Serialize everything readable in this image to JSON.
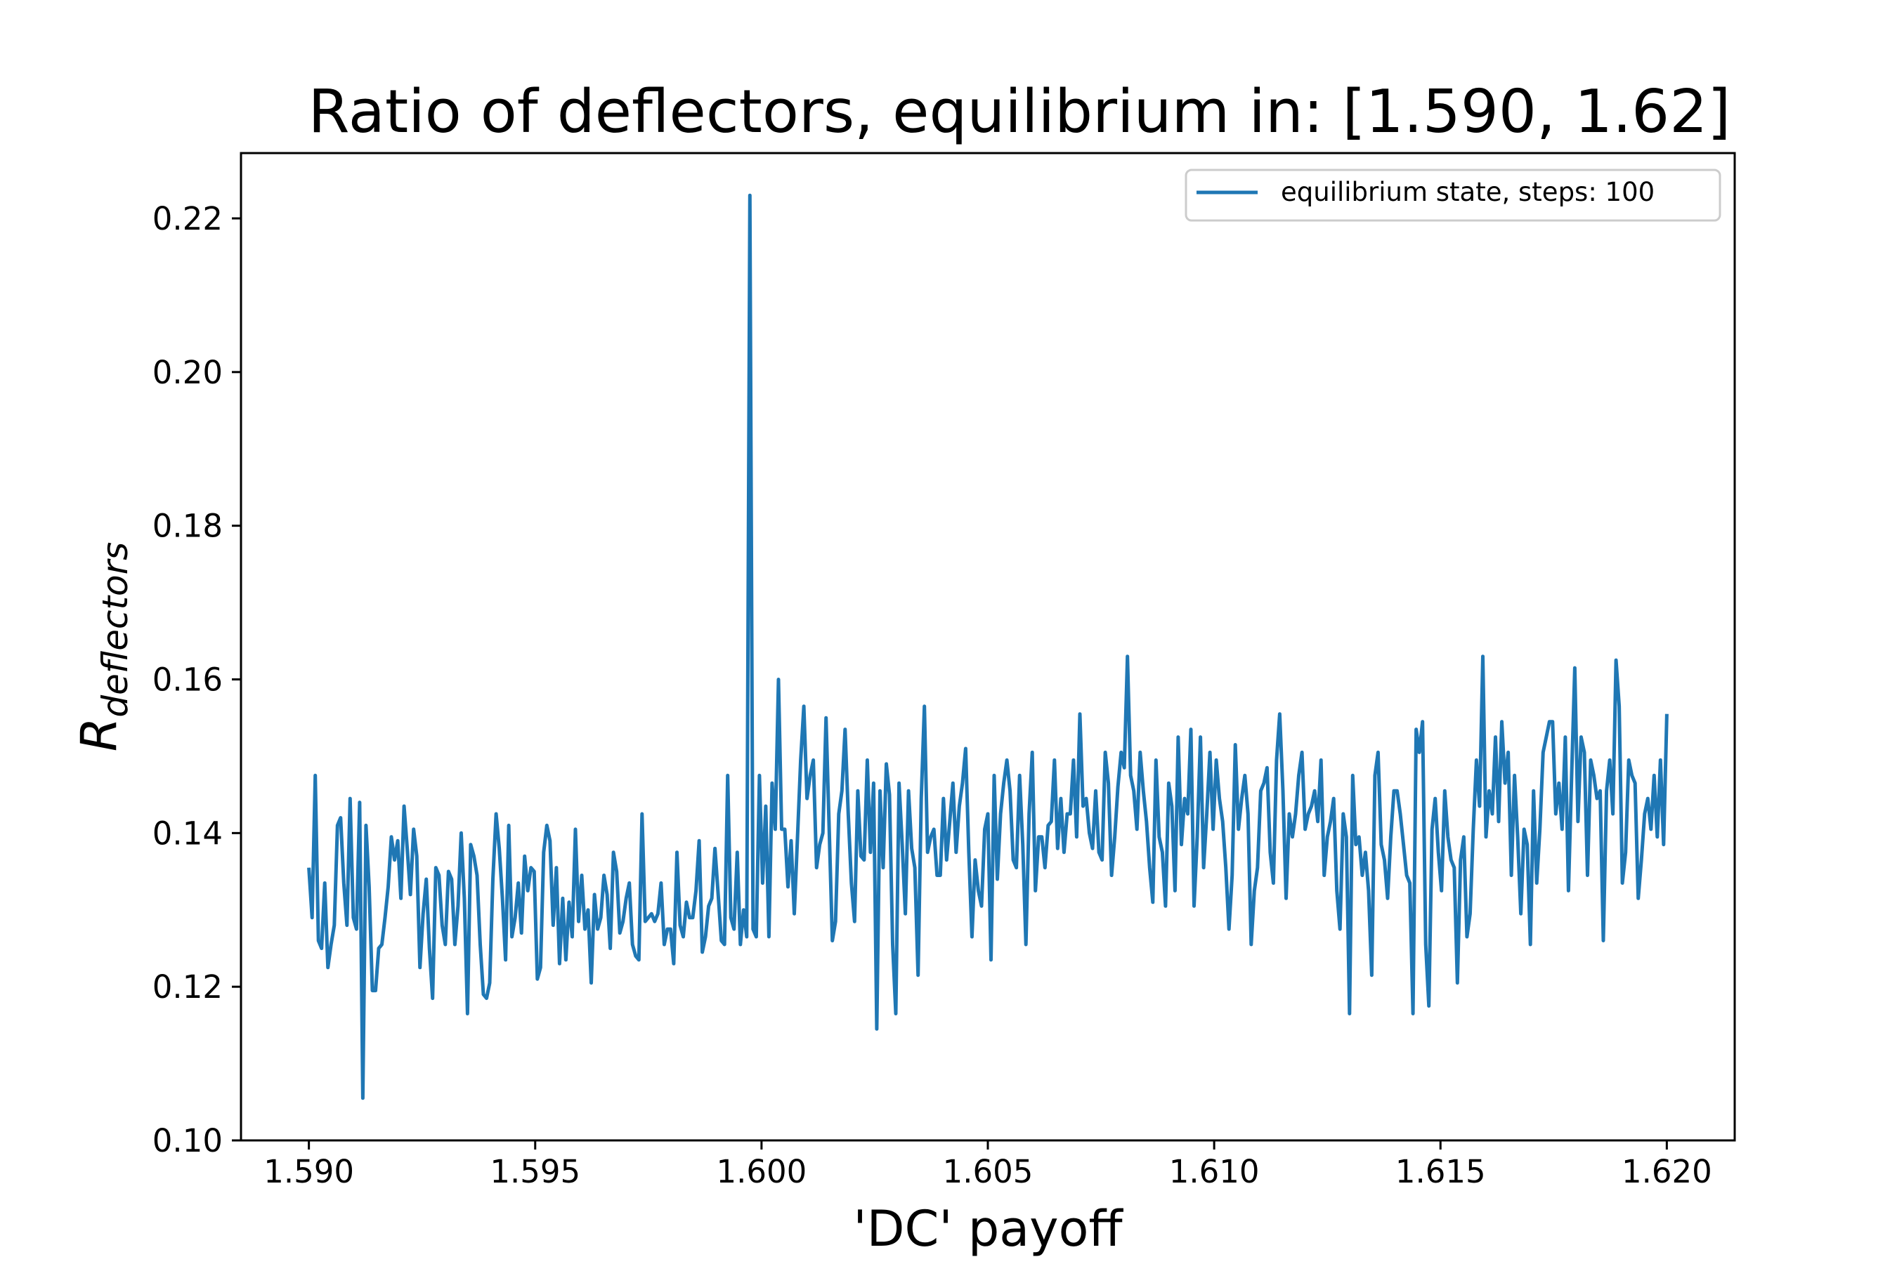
{
  "chart_data": {
    "type": "line",
    "title": "Ratio of deflectors, equilibrium in: [1.590, 1.62]",
    "xlabel": "'DC' payoff",
    "ylabel_main": "R",
    "ylabel_sub": "deflectors",
    "xlim": [
      1.5885,
      1.6215
    ],
    "ylim": [
      0.1,
      0.2285
    ],
    "x_ticks": [
      1.59,
      1.595,
      1.6,
      1.605,
      1.61,
      1.615,
      1.62
    ],
    "x_tick_labels": [
      "1.590",
      "1.595",
      "1.600",
      "1.605",
      "1.610",
      "1.615",
      "1.620"
    ],
    "y_ticks": [
      0.1,
      0.12,
      0.14,
      0.16,
      0.18,
      0.2,
      0.22
    ],
    "y_tick_labels": [
      "0.10",
      "0.12",
      "0.14",
      "0.16",
      "0.18",
      "0.20",
      "0.22"
    ],
    "grid": false,
    "legend_position": "top-right",
    "series": [
      {
        "name": "equilibrium state, steps: 100",
        "color": "#1f77b4",
        "x_start": 1.59,
        "x_end": 1.62,
        "values": [
          0.1355,
          0.129,
          0.1475,
          0.126,
          0.125,
          0.1335,
          0.1225,
          0.1255,
          0.128,
          0.141,
          0.142,
          0.1335,
          0.128,
          0.1445,
          0.129,
          0.1275,
          0.144,
          0.1055,
          0.141,
          0.133,
          0.1195,
          0.1195,
          0.125,
          0.1255,
          0.129,
          0.133,
          0.1395,
          0.1365,
          0.139,
          0.1315,
          0.1435,
          0.138,
          0.132,
          0.1405,
          0.137,
          0.1225,
          0.1295,
          0.134,
          0.125,
          0.1185,
          0.1355,
          0.1345,
          0.128,
          0.1255,
          0.135,
          0.134,
          0.1255,
          0.1305,
          0.14,
          0.1315,
          0.1165,
          0.1385,
          0.137,
          0.1345,
          0.1255,
          0.119,
          0.1185,
          0.1205,
          0.134,
          0.1425,
          0.138,
          0.1315,
          0.1235,
          0.141,
          0.1265,
          0.129,
          0.1335,
          0.127,
          0.137,
          0.1325,
          0.1355,
          0.135,
          0.121,
          0.1225,
          0.1375,
          0.141,
          0.139,
          0.128,
          0.1355,
          0.123,
          0.1315,
          0.1235,
          0.131,
          0.1265,
          0.1405,
          0.1285,
          0.1345,
          0.1275,
          0.13,
          0.1205,
          0.132,
          0.1275,
          0.129,
          0.1345,
          0.132,
          0.125,
          0.1375,
          0.135,
          0.127,
          0.1285,
          0.1315,
          0.1335,
          0.1255,
          0.124,
          0.1235,
          0.1425,
          0.1285,
          0.129,
          0.1295,
          0.1285,
          0.1295,
          0.1335,
          0.1255,
          0.1275,
          0.1275,
          0.123,
          0.1375,
          0.128,
          0.1265,
          0.131,
          0.129,
          0.129,
          0.1325,
          0.139,
          0.1245,
          0.1265,
          0.1305,
          0.1315,
          0.138,
          0.132,
          0.126,
          0.1255,
          0.1475,
          0.129,
          0.1275,
          0.1375,
          0.1255,
          0.13,
          0.1265,
          0.223,
          0.1275,
          0.1265,
          0.1475,
          0.1335,
          0.1435,
          0.1265,
          0.1465,
          0.1405,
          0.16,
          0.1405,
          0.1405,
          0.133,
          0.139,
          0.1295,
          0.1395,
          0.1495,
          0.1565,
          0.1445,
          0.1475,
          0.1495,
          0.1355,
          0.1385,
          0.14,
          0.155,
          0.1405,
          0.126,
          0.1285,
          0.1425,
          0.1455,
          0.1535,
          0.1425,
          0.1335,
          0.1285,
          0.1455,
          0.137,
          0.1365,
          0.1495,
          0.1375,
          0.1465,
          0.1145,
          0.1455,
          0.1355,
          0.149,
          0.145,
          0.1255,
          0.1165,
          0.1465,
          0.1385,
          0.1295,
          0.1455,
          0.138,
          0.1355,
          0.1215,
          0.1445,
          0.1565,
          0.1375,
          0.1395,
          0.1405,
          0.1345,
          0.1345,
          0.1445,
          0.1365,
          0.1415,
          0.1465,
          0.1375,
          0.1435,
          0.1465,
          0.151,
          0.1375,
          0.1265,
          0.1365,
          0.1325,
          0.1305,
          0.1405,
          0.1425,
          0.1235,
          0.1475,
          0.134,
          0.1425,
          0.1465,
          0.1495,
          0.1455,
          0.1365,
          0.1355,
          0.1475,
          0.1385,
          0.1255,
          0.1425,
          0.1505,
          0.1325,
          0.1395,
          0.1395,
          0.1355,
          0.141,
          0.1415,
          0.1495,
          0.138,
          0.1445,
          0.1375,
          0.1425,
          0.1425,
          0.1495,
          0.1395,
          0.1555,
          0.1435,
          0.1445,
          0.14,
          0.138,
          0.1455,
          0.1375,
          0.1365,
          0.1505,
          0.1465,
          0.1345,
          0.1395,
          0.146,
          0.1505,
          0.1485,
          0.163,
          0.1475,
          0.1455,
          0.1405,
          0.1505,
          0.1455,
          0.1415,
          0.1355,
          0.131,
          0.1495,
          0.1395,
          0.1375,
          0.1305,
          0.1465,
          0.1435,
          0.1325,
          0.1525,
          0.1385,
          0.1445,
          0.1425,
          0.1535,
          0.1305,
          0.1395,
          0.1525,
          0.1355,
          0.1425,
          0.1505,
          0.1405,
          0.1495,
          0.1445,
          0.1415,
          0.1355,
          0.1275,
          0.1345,
          0.1515,
          0.1405,
          0.1445,
          0.1475,
          0.1425,
          0.1255,
          0.1325,
          0.1355,
          0.1455,
          0.1465,
          0.1485,
          0.1375,
          0.1335,
          0.1495,
          0.1555,
          0.1455,
          0.1315,
          0.1425,
          0.1395,
          0.1425,
          0.1475,
          0.1505,
          0.1405,
          0.1425,
          0.1435,
          0.1455,
          0.1415,
          0.1495,
          0.1345,
          0.1395,
          0.1415,
          0.1445,
          0.1325,
          0.1275,
          0.1425,
          0.1395,
          0.1165,
          0.1475,
          0.1385,
          0.1395,
          0.1345,
          0.1375,
          0.1325,
          0.1215,
          0.1475,
          0.1505,
          0.1385,
          0.1365,
          0.1315,
          0.1395,
          0.1455,
          0.1455,
          0.1425,
          0.1385,
          0.1345,
          0.1335,
          0.1165,
          0.1535,
          0.1505,
          0.1545,
          0.1255,
          0.1175,
          0.1405,
          0.1445,
          0.1375,
          0.1325,
          0.1455,
          0.1395,
          0.1365,
          0.1355,
          0.1205,
          0.1365,
          0.1395,
          0.1265,
          0.1295,
          0.1405,
          0.1495,
          0.1435,
          0.163,
          0.1395,
          0.1455,
          0.1425,
          0.1525,
          0.1415,
          0.1545,
          0.1465,
          0.1505,
          0.1345,
          0.1475,
          0.1395,
          0.1295,
          0.1405,
          0.1385,
          0.1255,
          0.1455,
          0.1335,
          0.1405,
          0.1505,
          0.1525,
          0.1545,
          0.1545,
          0.1425,
          0.1465,
          0.1405,
          0.1525,
          0.1325,
          0.1475,
          0.1615,
          0.1415,
          0.1525,
          0.1505,
          0.1345,
          0.1495,
          0.1475,
          0.1445,
          0.1455,
          0.126,
          0.1455,
          0.1495,
          0.1425,
          0.1625,
          0.1565,
          0.1335,
          0.1375,
          0.1495,
          0.1475,
          0.1465,
          0.1315,
          0.1365,
          0.1425,
          0.1445,
          0.1405,
          0.1475,
          0.1395,
          0.1495,
          0.1385,
          0.1555
        ]
      }
    ]
  }
}
